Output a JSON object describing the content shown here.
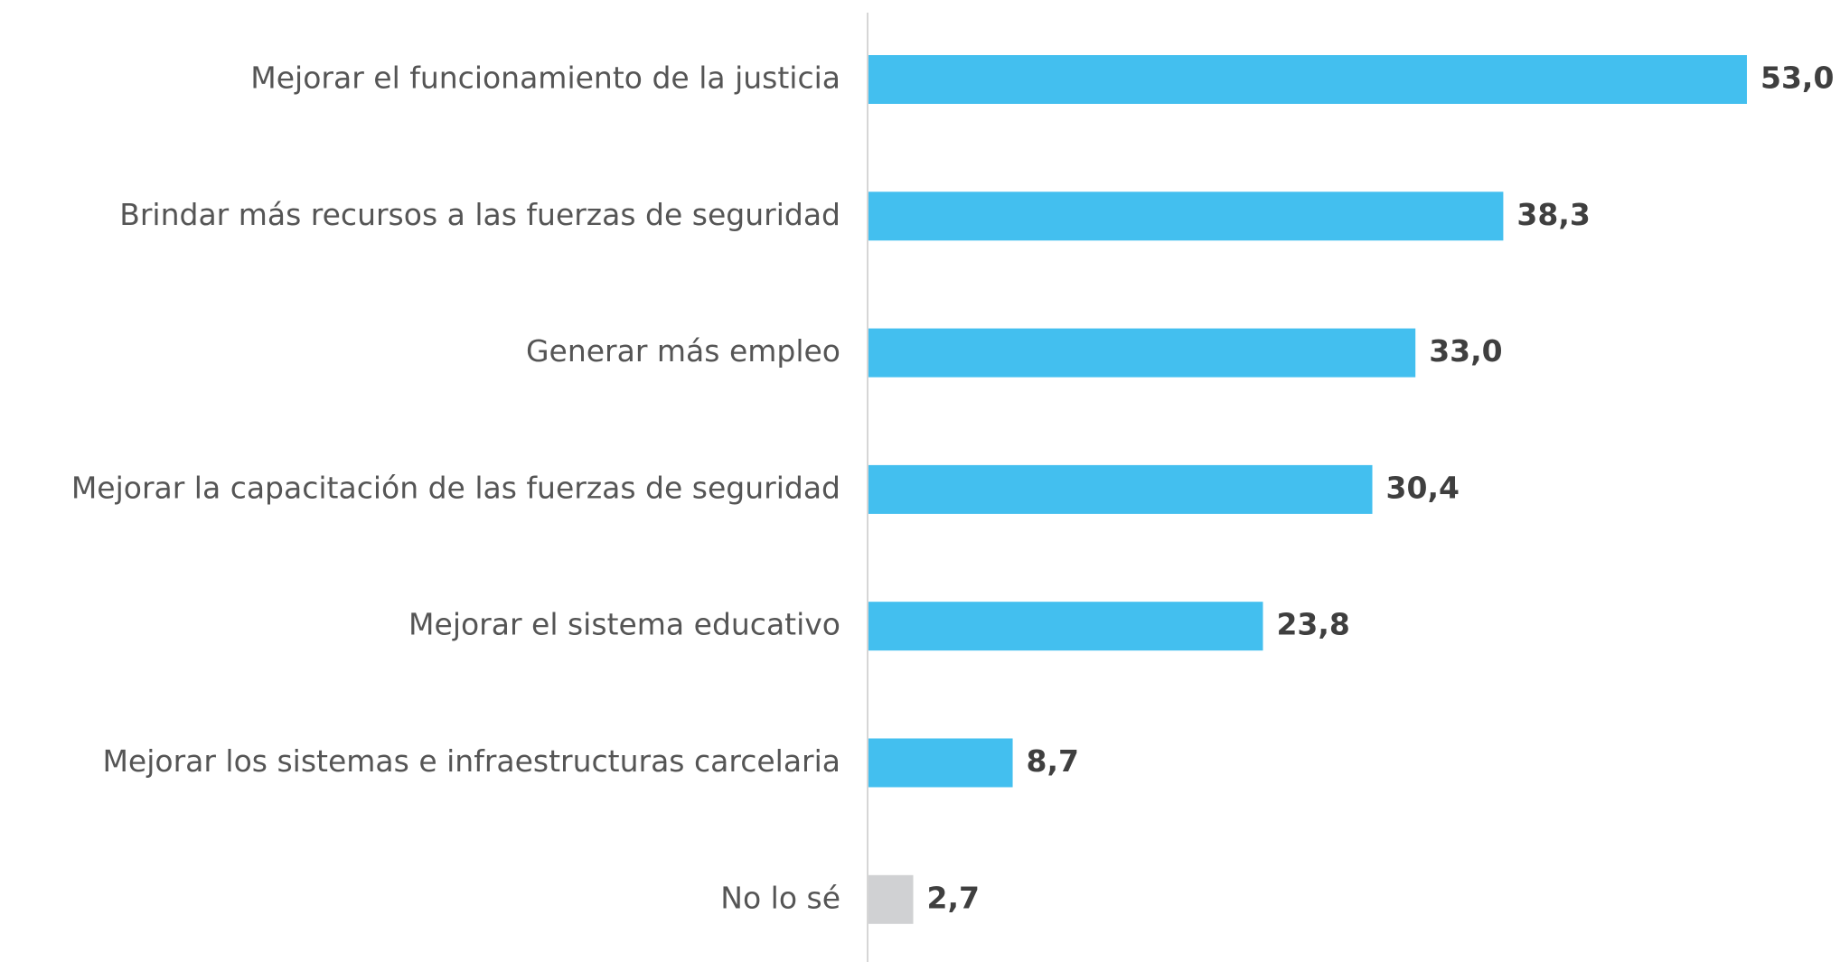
{
  "chart_data": {
    "type": "hbar",
    "categories": [
      "Mejorar el funcionamiento de la justicia",
      "Brindar más recursos a las fuerzas de seguridad",
      "Generar más empleo",
      "Mejorar la capacitación de las fuerzas de seguridad",
      "Mejorar el sistema educativo",
      "Mejorar los sistemas e infraestructuras carcelaria",
      "No lo sé"
    ],
    "values": [
      53.0,
      38.3,
      33.0,
      30.4,
      23.8,
      8.7,
      2.7
    ],
    "value_labels": [
      "53,0",
      "38,3",
      "33,0",
      "30,4",
      "23,8",
      "8,7",
      "2,7"
    ],
    "colors": [
      "#43bfef",
      "#43bfef",
      "#43bfef",
      "#43bfef",
      "#43bfef",
      "#43bfef",
      "#d0d1d3"
    ]
  }
}
